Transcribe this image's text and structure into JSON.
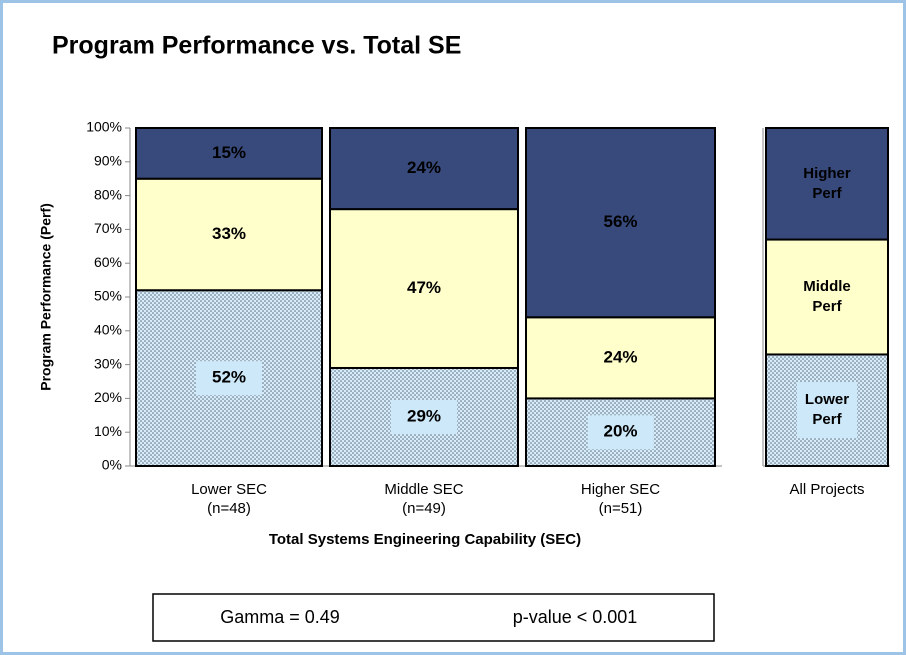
{
  "chart_data": [
    {
      "type": "stacked_bar",
      "title": "Program Performance vs. Total SE",
      "ylabel": "Program Performance (Perf)",
      "xlabel": "Total Systems Engineering Capability (SEC)",
      "categories": [
        "Lower SEC",
        "Middle SEC",
        "Higher SEC"
      ],
      "category_notes": [
        "(n=48)",
        "(n=49)",
        "(n=51)"
      ],
      "ylim": [
        0,
        100
      ],
      "yticks": [
        {
          "value": 0,
          "label": "0%"
        },
        {
          "value": 10,
          "label": "10%"
        },
        {
          "value": 20,
          "label": "20%"
        },
        {
          "value": 30,
          "label": "30%"
        },
        {
          "value": 40,
          "label": "40%"
        },
        {
          "value": 50,
          "label": "50%"
        },
        {
          "value": 60,
          "label": "60%"
        },
        {
          "value": 70,
          "label": "70%"
        },
        {
          "value": 80,
          "label": "80%"
        },
        {
          "value": 90,
          "label": "90%"
        },
        {
          "value": 100,
          "label": "100%"
        }
      ],
      "series": [
        {
          "name": "Lower Perf",
          "color": "#d6ecfa",
          "values": [
            52,
            29,
            20
          ],
          "value_labels": [
            "52%",
            "29%",
            "20%"
          ]
        },
        {
          "name": "Middle Perf",
          "color": "#ffffcc",
          "values": [
            33,
            47,
            24
          ],
          "value_labels": [
            "33%",
            "47%",
            "24%"
          ]
        },
        {
          "name": "Higher Perf",
          "color": "#384a7c",
          "values": [
            15,
            24,
            56
          ],
          "value_labels": [
            "15%",
            "24%",
            "56%"
          ]
        }
      ],
      "annotations": [
        "Gamma = 0.49",
        "p-value < 0.001"
      ]
    },
    {
      "type": "stacked_bar",
      "categories": [
        "All Projects"
      ],
      "ylim": [
        0,
        100
      ],
      "series": [
        {
          "name": "Lower Perf",
          "color": "#d6ecfa",
          "values": [
            33
          ]
        },
        {
          "name": "Middle Perf",
          "color": "#ffffcc",
          "values": [
            34
          ]
        },
        {
          "name": "Higher Perf",
          "color": "#384a7c",
          "values": [
            33
          ]
        }
      ]
    }
  ]
}
